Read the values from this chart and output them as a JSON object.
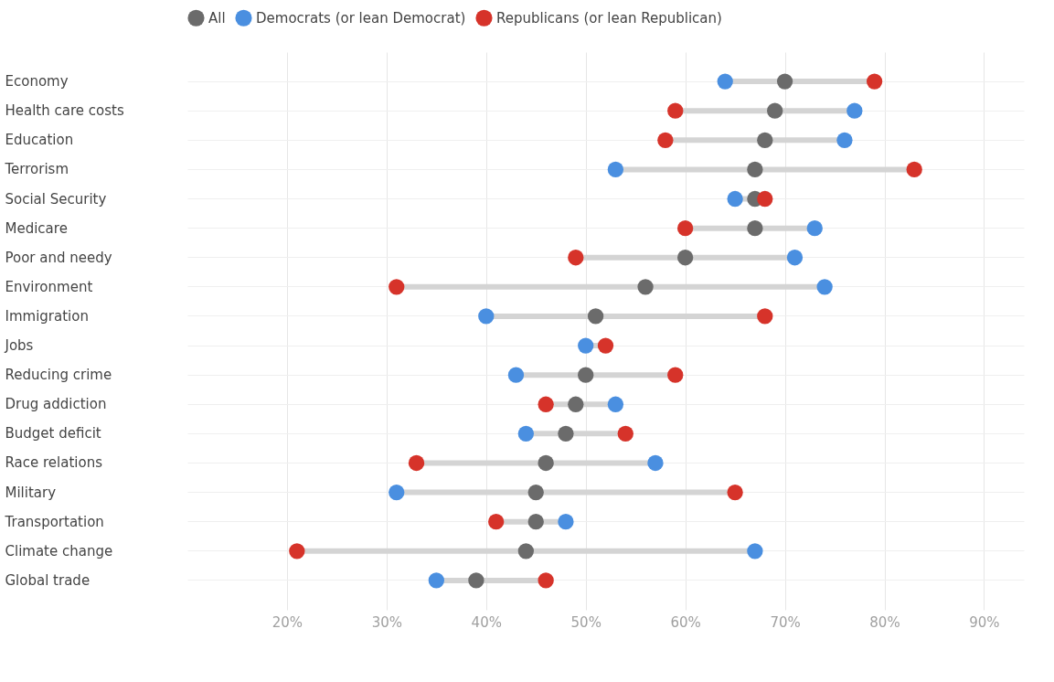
{
  "chart_data": {
    "type": "scatter",
    "orientation": "horizontal",
    "categories": [
      "Economy",
      "Health care costs",
      "Education",
      "Terrorism",
      "Social Security",
      "Medicare",
      "Poor and needy",
      "Environment",
      "Immigration",
      "Jobs",
      "Reducing crime",
      "Drug addiction",
      "Budget deficit",
      "Race relations",
      "Military",
      "Transportation",
      "Climate change",
      "Global trade"
    ],
    "series": [
      {
        "name": "All",
        "color": "#6b6b6b",
        "values": [
          70,
          69,
          68,
          67,
          67,
          67,
          60,
          56,
          51,
          null,
          50,
          49,
          48,
          46,
          45,
          45,
          44,
          39
        ]
      },
      {
        "name": "Democrats (or lean Democrat)",
        "color": "#4a8fe0",
        "values": [
          64,
          77,
          76,
          53,
          65,
          73,
          71,
          74,
          40,
          50,
          43,
          53,
          44,
          57,
          31,
          48,
          67,
          35
        ]
      },
      {
        "name": "Republicans (or lean Republican)",
        "color": "#d6332a",
        "values": [
          79,
          59,
          58,
          83,
          68,
          60,
          49,
          31,
          68,
          52,
          59,
          46,
          54,
          33,
          65,
          41,
          21,
          46
        ]
      }
    ],
    "xlim": [
      10,
      94
    ],
    "xticks": [
      {
        "value": 20,
        "label": "20%"
      },
      {
        "value": 30,
        "label": "30%"
      },
      {
        "value": 40,
        "label": "40%"
      },
      {
        "value": 50,
        "label": "50%"
      },
      {
        "value": 60,
        "label": "60%"
      },
      {
        "value": 70,
        "label": "70%"
      },
      {
        "value": 80,
        "label": "80%"
      },
      {
        "value": 90,
        "label": "90%"
      }
    ],
    "grid": true,
    "legend": "top left",
    "marker": "circle"
  }
}
